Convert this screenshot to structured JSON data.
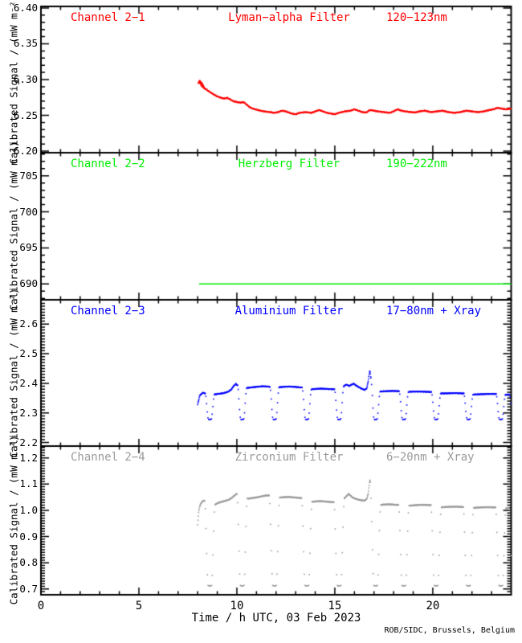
{
  "figure": {
    "background": "#ffffff",
    "axis_color": "#000000",
    "ylabel": "Calibrated Signal / (mW m⁻²)",
    "xlabel": "Time / h UTC, 03 Feb 2023",
    "credit": "ROB/SIDC, Brussels, Belgium",
    "x": {
      "min": 0,
      "max": 24,
      "ticks": [
        0,
        5,
        10,
        15,
        20
      ],
      "tick_labels": [
        "0",
        "5",
        "10",
        "15",
        "20"
      ],
      "minor_step": 1
    }
  },
  "chart_data": [
    {
      "type": "scatter",
      "channel": "Channel 2−1",
      "filter": "Lyman−alpha Filter",
      "band": "120−123nm",
      "color": "#ff0000",
      "ylim": [
        6.1978,
        6.4022
      ],
      "yticks": [
        6.2,
        6.25,
        6.3,
        6.35,
        6.4
      ],
      "ytick_labels": [
        "6.20",
        "6.25",
        "6.30",
        "6.35",
        "6.40"
      ],
      "minor_step": 0.01,
      "style": "dots",
      "jitter": 0.0007,
      "start_scatter": {
        "from": 8.03,
        "to": 8.33,
        "step": 0.012,
        "amp": 0.0038
      },
      "points": [
        [
          8.05,
          6.2955
        ],
        [
          8.1,
          6.2965
        ],
        [
          8.15,
          6.293
        ],
        [
          8.2,
          6.2915
        ],
        [
          8.3,
          6.2885
        ],
        [
          8.45,
          6.286
        ],
        [
          8.6,
          6.283
        ],
        [
          8.8,
          6.2795
        ],
        [
          9.0,
          6.2765
        ],
        [
          9.2,
          6.2745
        ],
        [
          9.35,
          6.2735
        ],
        [
          9.5,
          6.2745
        ],
        [
          9.65,
          6.2725
        ],
        [
          9.8,
          6.27
        ],
        [
          10.0,
          6.2685
        ],
        [
          10.2,
          6.2678
        ],
        [
          10.35,
          6.2685
        ],
        [
          10.5,
          6.265
        ],
        [
          10.65,
          6.2615
        ],
        [
          10.8,
          6.2595
        ],
        [
          11.0,
          6.258
        ],
        [
          11.2,
          6.2565
        ],
        [
          11.4,
          6.2555
        ],
        [
          11.7,
          6.2545
        ],
        [
          11.9,
          6.2535
        ],
        [
          12.1,
          6.2545
        ],
        [
          12.3,
          6.2565
        ],
        [
          12.5,
          6.2555
        ],
        [
          12.8,
          6.2525
        ],
        [
          13.0,
          6.2515
        ],
        [
          13.2,
          6.2535
        ],
        [
          13.5,
          6.2545
        ],
        [
          13.8,
          6.2535
        ],
        [
          14.0,
          6.2555
        ],
        [
          14.2,
          6.2575
        ],
        [
          14.4,
          6.2555
        ],
        [
          14.6,
          6.2535
        ],
        [
          14.8,
          6.2525
        ],
        [
          15.0,
          6.2515
        ],
        [
          15.2,
          6.2535
        ],
        [
          15.5,
          6.2555
        ],
        [
          15.8,
          6.2565
        ],
        [
          16.0,
          6.2585
        ],
        [
          16.2,
          6.2565
        ],
        [
          16.4,
          6.2545
        ],
        [
          16.6,
          6.254
        ],
        [
          16.8,
          6.2575
        ],
        [
          17.0,
          6.2565
        ],
        [
          17.2,
          6.2555
        ],
        [
          17.5,
          6.2545
        ],
        [
          17.8,
          6.2535
        ],
        [
          18.0,
          6.2555
        ],
        [
          18.2,
          6.2585
        ],
        [
          18.4,
          6.2565
        ],
        [
          18.6,
          6.2555
        ],
        [
          18.9,
          6.2545
        ],
        [
          19.1,
          6.254
        ],
        [
          19.3,
          6.2555
        ],
        [
          19.6,
          6.2565
        ],
        [
          19.9,
          6.2545
        ],
        [
          20.2,
          6.2555
        ],
        [
          20.5,
          6.2565
        ],
        [
          20.8,
          6.2545
        ],
        [
          21.1,
          6.2535
        ],
        [
          21.4,
          6.2545
        ],
        [
          21.7,
          6.2565
        ],
        [
          22.0,
          6.2555
        ],
        [
          22.3,
          6.2545
        ],
        [
          22.6,
          6.2555
        ],
        [
          22.9,
          6.2575
        ],
        [
          23.1,
          6.2585
        ],
        [
          23.3,
          6.2605
        ],
        [
          23.5,
          6.2595
        ],
        [
          23.7,
          6.2585
        ],
        [
          23.9,
          6.259
        ],
        [
          24.0,
          6.2595
        ]
      ]
    },
    {
      "type": "scatter",
      "channel": "Channel 2−2",
      "filter": "Herzberg Filter",
      "band": "190−222nm",
      "color": "#00ee00",
      "ylim": [
        687.8,
        708.2
      ],
      "yticks": [
        690,
        695,
        700,
        705
      ],
      "ytick_labels": [
        "690",
        "695",
        "700",
        "705"
      ],
      "minor_step": 1,
      "style": "line",
      "jitter": 0,
      "points": [
        [
          8.07,
          690.0
        ],
        [
          24.0,
          690.0
        ]
      ]
    },
    {
      "type": "scatter",
      "channel": "Channel 2−3",
      "filter": "Aluminium Filter",
      "band": "17−80nm + Xray",
      "color": "#0000ff",
      "ylim": [
        2.188,
        2.682
      ],
      "yticks": [
        2.2,
        2.3,
        2.4,
        2.5,
        2.6
      ],
      "ytick_labels": [
        "2.2",
        "2.3",
        "2.4",
        "2.5",
        "2.6"
      ],
      "minor_step": 0.01,
      "style": "dots",
      "jitter": 0.0013,
      "dips": {
        "times": [
          8.62,
          10.27,
          11.92,
          13.57,
          15.22,
          17.08,
          18.52,
          20.17,
          21.82,
          23.47,
          24.15
        ],
        "half_width": 0.24,
        "bottom": 2.278,
        "flat": 0.28
      },
      "points": [
        [
          8.0,
          2.328
        ],
        [
          8.1,
          2.358
        ],
        [
          8.25,
          2.368
        ],
        [
          8.4,
          2.366
        ],
        [
          8.5,
          2.359
        ],
        [
          8.75,
          2.361
        ],
        [
          9.0,
          2.364
        ],
        [
          9.25,
          2.366
        ],
        [
          9.5,
          2.37
        ],
        [
          9.7,
          2.378
        ],
        [
          9.85,
          2.392
        ],
        [
          9.95,
          2.398
        ],
        [
          10.05,
          2.392
        ],
        [
          10.15,
          2.385
        ],
        [
          10.4,
          2.383
        ],
        [
          10.7,
          2.386
        ],
        [
          11.0,
          2.388
        ],
        [
          11.3,
          2.39
        ],
        [
          11.6,
          2.389
        ],
        [
          11.8,
          2.387
        ],
        [
          12.05,
          2.386
        ],
        [
          12.35,
          2.388
        ],
        [
          12.65,
          2.389
        ],
        [
          12.95,
          2.388
        ],
        [
          13.25,
          2.386
        ],
        [
          13.45,
          2.385
        ],
        [
          13.7,
          2.379
        ],
        [
          14.0,
          2.381
        ],
        [
          14.3,
          2.382
        ],
        [
          14.6,
          2.381
        ],
        [
          14.9,
          2.38
        ],
        [
          15.1,
          2.38
        ],
        [
          15.3,
          2.382
        ],
        [
          15.45,
          2.39
        ],
        [
          15.6,
          2.396
        ],
        [
          15.72,
          2.391
        ],
        [
          15.82,
          2.394
        ],
        [
          15.95,
          2.399
        ],
        [
          16.1,
          2.392
        ],
        [
          16.3,
          2.384
        ],
        [
          16.5,
          2.378
        ],
        [
          16.62,
          2.381
        ],
        [
          16.7,
          2.405
        ],
        [
          16.75,
          2.428
        ],
        [
          16.78,
          2.443
        ],
        [
          16.81,
          2.436
        ],
        [
          16.85,
          2.412
        ],
        [
          17.25,
          2.372
        ],
        [
          17.5,
          2.373
        ],
        [
          17.8,
          2.374
        ],
        [
          18.1,
          2.374
        ],
        [
          18.4,
          2.373
        ],
        [
          18.7,
          2.371
        ],
        [
          19.0,
          2.372
        ],
        [
          19.4,
          2.372
        ],
        [
          19.8,
          2.371
        ],
        [
          20.05,
          2.37
        ],
        [
          20.35,
          2.366
        ],
        [
          20.7,
          2.366
        ],
        [
          21.1,
          2.367
        ],
        [
          21.5,
          2.366
        ],
        [
          21.7,
          2.365
        ],
        [
          22.0,
          2.362
        ],
        [
          22.4,
          2.363
        ],
        [
          22.8,
          2.364
        ],
        [
          23.2,
          2.364
        ],
        [
          23.35,
          2.363
        ],
        [
          23.65,
          2.361
        ],
        [
          23.85,
          2.362
        ],
        [
          24.0,
          2.363
        ]
      ]
    },
    {
      "type": "scatter",
      "channel": "Channel 2−4",
      "filter": "Zirconium Filter",
      "band": "6−20nm + Xray",
      "color": "#9b9b9b",
      "ylim": [
        0.678,
        1.245
      ],
      "yticks": [
        0.7,
        0.8,
        0.9,
        1.0,
        1.1,
        1.2
      ],
      "ytick_labels": [
        "0.7",
        "0.8",
        "0.9",
        "1.0",
        "1.1",
        "1.2"
      ],
      "minor_step": 0.01,
      "style": "dots",
      "jitter": 0.0018,
      "dips": {
        "times": [
          8.62,
          10.27,
          11.92,
          13.57,
          15.22,
          17.08,
          18.52,
          20.17,
          21.82,
          23.47,
          24.15
        ],
        "half_width": 0.27,
        "bottom": 0.712,
        "flat": 0.3
      },
      "points": [
        [
          8.0,
          0.945
        ],
        [
          8.05,
          0.995
        ],
        [
          8.1,
          1.015
        ],
        [
          8.2,
          1.031
        ],
        [
          8.3,
          1.037
        ],
        [
          8.4,
          1.034
        ],
        [
          8.5,
          1.026
        ],
        [
          8.75,
          1.012
        ],
        [
          8.85,
          1.02
        ],
        [
          9.0,
          1.027
        ],
        [
          9.2,
          1.032
        ],
        [
          9.4,
          1.036
        ],
        [
          9.6,
          1.041
        ],
        [
          9.75,
          1.048
        ],
        [
          9.9,
          1.058
        ],
        [
          10.0,
          1.063
        ],
        [
          10.1,
          1.052
        ],
        [
          10.4,
          1.043
        ],
        [
          10.7,
          1.046
        ],
        [
          11.0,
          1.049
        ],
        [
          11.3,
          1.054
        ],
        [
          11.55,
          1.057
        ],
        [
          11.8,
          1.055
        ],
        [
          12.05,
          1.047
        ],
        [
          12.35,
          1.05
        ],
        [
          12.65,
          1.051
        ],
        [
          12.95,
          1.049
        ],
        [
          13.25,
          1.047
        ],
        [
          13.45,
          1.046
        ],
        [
          13.7,
          1.031
        ],
        [
          14.0,
          1.034
        ],
        [
          14.3,
          1.035
        ],
        [
          14.6,
          1.033
        ],
        [
          14.9,
          1.031
        ],
        [
          15.1,
          1.03
        ],
        [
          15.3,
          1.032
        ],
        [
          15.45,
          1.042
        ],
        [
          15.6,
          1.055
        ],
        [
          15.72,
          1.063
        ],
        [
          15.82,
          1.054
        ],
        [
          15.95,
          1.047
        ],
        [
          16.1,
          1.043
        ],
        [
          16.3,
          1.039
        ],
        [
          16.5,
          1.037
        ],
        [
          16.62,
          1.042
        ],
        [
          16.7,
          1.062
        ],
        [
          16.75,
          1.092
        ],
        [
          16.78,
          1.117
        ],
        [
          16.81,
          1.108
        ],
        [
          16.85,
          1.075
        ],
        [
          17.25,
          1.02
        ],
        [
          17.5,
          1.022
        ],
        [
          17.8,
          1.023
        ],
        [
          18.1,
          1.021
        ],
        [
          18.4,
          1.02
        ],
        [
          18.7,
          1.017
        ],
        [
          19.0,
          1.019
        ],
        [
          19.4,
          1.021
        ],
        [
          19.8,
          1.02
        ],
        [
          20.05,
          1.019
        ],
        [
          20.35,
          1.011
        ],
        [
          20.7,
          1.013
        ],
        [
          21.1,
          1.014
        ],
        [
          21.5,
          1.013
        ],
        [
          21.7,
          1.012
        ],
        [
          22.0,
          1.009
        ],
        [
          22.4,
          1.011
        ],
        [
          22.8,
          1.012
        ],
        [
          23.2,
          1.011
        ],
        [
          23.35,
          1.01
        ],
        [
          23.65,
          1.007
        ],
        [
          23.85,
          1.009
        ],
        [
          24.0,
          1.008
        ]
      ]
    }
  ]
}
